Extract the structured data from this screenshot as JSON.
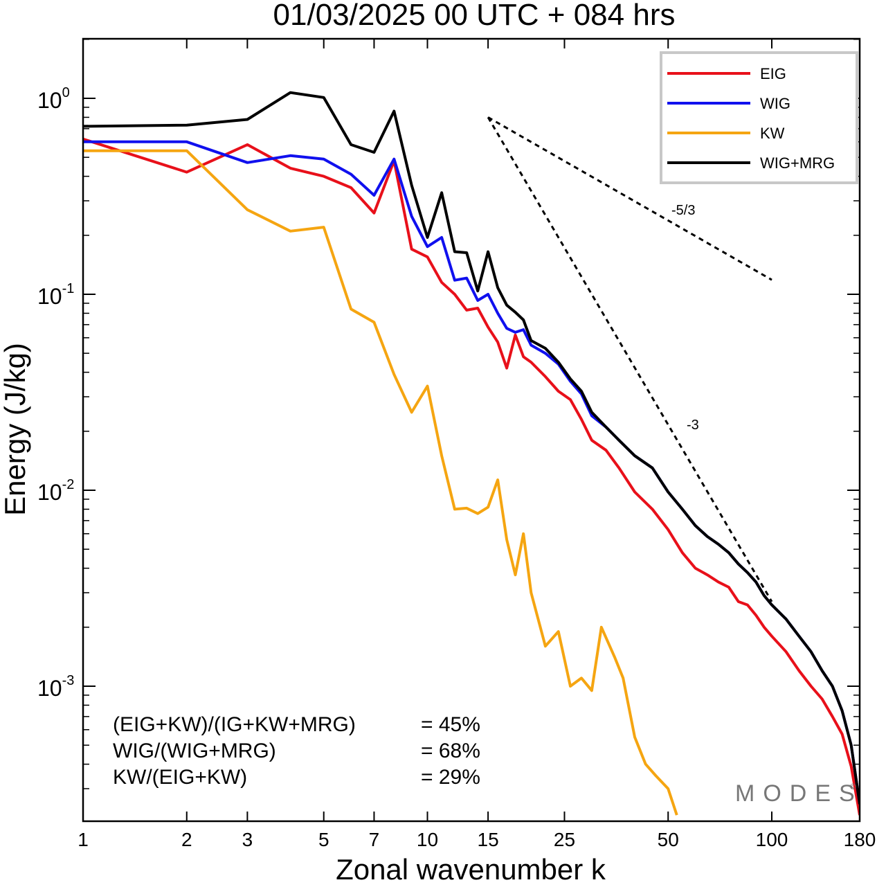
{
  "chart_data": {
    "type": "line",
    "title": "01/03/2025  00 UTC  + 084 hrs",
    "xlabel": "Zonal wavenumber k",
    "ylabel": "Energy (J/kg)",
    "x_scale": "log",
    "y_scale": "log",
    "xlim": [
      1,
      180
    ],
    "ylim": [
      0.00022,
      2.0
    ],
    "x_ticks": [
      {
        "value": 1,
        "label": "1"
      },
      {
        "value": 2,
        "label": "2"
      },
      {
        "value": 3,
        "label": "3"
      },
      {
        "value": 5,
        "label": "5"
      },
      {
        "value": 7,
        "label": "7"
      },
      {
        "value": 10,
        "label": "10"
      },
      {
        "value": 15,
        "label": "15"
      },
      {
        "value": 25,
        "label": "25"
      },
      {
        "value": 50,
        "label": "50"
      },
      {
        "value": 100,
        "label": "100"
      },
      {
        "value": 180,
        "label": "180"
      }
    ],
    "y_ticks": [
      {
        "value": 1,
        "base": "10",
        "exp": "0"
      },
      {
        "value": 0.1,
        "base": "10",
        "exp": "-1"
      },
      {
        "value": 0.01,
        "base": "10",
        "exp": "-2"
      },
      {
        "value": 0.001,
        "base": "10",
        "exp": "-3"
      }
    ],
    "grid": false,
    "legend_position": "top-right",
    "series": [
      {
        "name": "EIG",
        "color": "#e8101a",
        "points": [
          [
            1,
            0.62
          ],
          [
            2,
            0.42
          ],
          [
            3,
            0.58
          ],
          [
            4,
            0.44
          ],
          [
            5,
            0.4
          ],
          [
            6,
            0.35
          ],
          [
            7,
            0.26
          ],
          [
            8,
            0.48
          ],
          [
            9,
            0.17
          ],
          [
            10,
            0.155
          ],
          [
            11,
            0.115
          ],
          [
            12,
            0.1
          ],
          [
            13,
            0.083
          ],
          [
            14,
            0.085
          ],
          [
            15,
            0.068
          ],
          [
            16,
            0.057
          ],
          [
            17,
            0.042
          ],
          [
            18,
            0.062
          ],
          [
            19,
            0.048
          ],
          [
            20,
            0.045
          ],
          [
            22,
            0.038
          ],
          [
            24,
            0.032
          ],
          [
            26,
            0.029
          ],
          [
            28,
            0.023
          ],
          [
            30,
            0.018
          ],
          [
            33,
            0.016
          ],
          [
            36,
            0.013
          ],
          [
            40,
            0.0098
          ],
          [
            45,
            0.008
          ],
          [
            50,
            0.0063
          ],
          [
            55,
            0.0048
          ],
          [
            60,
            0.004
          ],
          [
            65,
            0.0037
          ],
          [
            70,
            0.0034
          ],
          [
            75,
            0.0032
          ],
          [
            80,
            0.0027
          ],
          [
            85,
            0.0026
          ],
          [
            90,
            0.0023
          ],
          [
            95,
            0.002
          ],
          [
            100,
            0.0018
          ],
          [
            110,
            0.0015
          ],
          [
            120,
            0.0012
          ],
          [
            130,
            0.001
          ],
          [
            140,
            0.00086
          ],
          [
            150,
            0.0007
          ],
          [
            160,
            0.00057
          ],
          [
            170,
            0.00039
          ],
          [
            180,
            0.00022
          ]
        ]
      },
      {
        "name": "WIG",
        "color": "#1010ee",
        "points": [
          [
            1,
            0.6
          ],
          [
            2,
            0.6
          ],
          [
            3,
            0.47
          ],
          [
            4,
            0.51
          ],
          [
            5,
            0.49
          ],
          [
            6,
            0.41
          ],
          [
            7,
            0.32
          ],
          [
            8,
            0.49
          ],
          [
            9,
            0.25
          ],
          [
            10,
            0.175
          ],
          [
            11,
            0.195
          ],
          [
            12,
            0.118
          ],
          [
            13,
            0.121
          ],
          [
            14,
            0.093
          ],
          [
            15,
            0.1
          ],
          [
            16,
            0.08
          ],
          [
            17,
            0.067
          ],
          [
            18,
            0.064
          ],
          [
            19,
            0.066
          ],
          [
            20,
            0.055
          ],
          [
            22,
            0.05
          ],
          [
            24,
            0.044
          ],
          [
            26,
            0.036
          ],
          [
            28,
            0.031
          ],
          [
            30,
            0.024
          ],
          [
            33,
            0.021
          ],
          [
            36,
            0.018
          ],
          [
            40,
            0.015
          ],
          [
            45,
            0.013
          ],
          [
            50,
            0.0098
          ],
          [
            55,
            0.008
          ],
          [
            60,
            0.0066
          ],
          [
            65,
            0.0058
          ],
          [
            70,
            0.0053
          ],
          [
            75,
            0.0048
          ],
          [
            80,
            0.0042
          ],
          [
            85,
            0.0038
          ],
          [
            90,
            0.0034
          ],
          [
            95,
            0.0029
          ],
          [
            100,
            0.0026
          ],
          [
            110,
            0.0022
          ],
          [
            120,
            0.0018
          ],
          [
            130,
            0.0015
          ],
          [
            140,
            0.0012
          ],
          [
            150,
            0.001
          ],
          [
            160,
            0.00075
          ],
          [
            170,
            0.0005
          ],
          [
            180,
            0.00025
          ]
        ]
      },
      {
        "name": "KW",
        "color": "#f5a511",
        "points": [
          [
            1,
            0.54
          ],
          [
            2,
            0.54
          ],
          [
            3,
            0.27
          ],
          [
            4,
            0.21
          ],
          [
            5,
            0.22
          ],
          [
            6,
            0.084
          ],
          [
            7,
            0.072
          ],
          [
            8,
            0.039
          ],
          [
            9,
            0.025
          ],
          [
            10,
            0.034
          ],
          [
            11,
            0.015
          ],
          [
            12,
            0.008
          ],
          [
            13,
            0.0081
          ],
          [
            14,
            0.0076
          ],
          [
            15,
            0.0082
          ],
          [
            16,
            0.0113
          ],
          [
            17,
            0.0056
          ],
          [
            18,
            0.0037
          ],
          [
            19,
            0.006
          ],
          [
            20,
            0.003
          ],
          [
            22,
            0.0016
          ],
          [
            24,
            0.0019
          ],
          [
            26,
            0.001
          ],
          [
            28,
            0.0011
          ],
          [
            30,
            0.00095
          ],
          [
            32,
            0.002
          ],
          [
            35,
            0.0014
          ],
          [
            37,
            0.0011
          ],
          [
            40,
            0.00055
          ],
          [
            43,
            0.0004
          ],
          [
            46,
            0.00035
          ],
          [
            50,
            0.0003
          ],
          [
            53,
            0.00022
          ]
        ]
      },
      {
        "name": "WIG+MRG",
        "color": "#000000",
        "points": [
          [
            1,
            0.72
          ],
          [
            2,
            0.73
          ],
          [
            3,
            0.78
          ],
          [
            4,
            1.07
          ],
          [
            5,
            1.01
          ],
          [
            6,
            0.58
          ],
          [
            7,
            0.53
          ],
          [
            8,
            0.86
          ],
          [
            9,
            0.36
          ],
          [
            10,
            0.195
          ],
          [
            11,
            0.33
          ],
          [
            12,
            0.165
          ],
          [
            13,
            0.163
          ],
          [
            14,
            0.104
          ],
          [
            15,
            0.165
          ],
          [
            16,
            0.108
          ],
          [
            17,
            0.088
          ],
          [
            18,
            0.081
          ],
          [
            19,
            0.074
          ],
          [
            20,
            0.058
          ],
          [
            22,
            0.053
          ],
          [
            24,
            0.045
          ],
          [
            26,
            0.037
          ],
          [
            28,
            0.032
          ],
          [
            30,
            0.025
          ],
          [
            33,
            0.021
          ],
          [
            36,
            0.018
          ],
          [
            40,
            0.015
          ],
          [
            45,
            0.013
          ],
          [
            50,
            0.0098
          ],
          [
            55,
            0.008
          ],
          [
            60,
            0.0066
          ],
          [
            65,
            0.0058
          ],
          [
            70,
            0.0053
          ],
          [
            75,
            0.0048
          ],
          [
            80,
            0.0042
          ],
          [
            85,
            0.0038
          ],
          [
            90,
            0.0034
          ],
          [
            95,
            0.0029
          ],
          [
            100,
            0.0026
          ],
          [
            110,
            0.0022
          ],
          [
            120,
            0.0018
          ],
          [
            130,
            0.0015
          ],
          [
            140,
            0.0012
          ],
          [
            150,
            0.001
          ],
          [
            160,
            0.00075
          ],
          [
            170,
            0.0005
          ],
          [
            180,
            0.00025
          ]
        ]
      }
    ],
    "reference_lines": [
      {
        "label": "-5/3",
        "slope": -1.6667,
        "x": [
          15,
          100
        ],
        "y": [
          0.8,
          0.1185
        ]
      },
      {
        "label": "-3",
        "slope": -3,
        "x": [
          15,
          100
        ],
        "y": [
          0.8,
          0.0027
        ]
      }
    ],
    "statistics": [
      {
        "label": "(EIG+KW)/(IG+KW+MRG)",
        "value": "= 45%"
      },
      {
        "label": "WIG/(WIG+MRG)",
        "value": "= 68%"
      },
      {
        "label": "KW/(EIG+KW)",
        "value": "= 29%"
      }
    ],
    "watermark": "MODES",
    "watermark_mark": "©"
  }
}
